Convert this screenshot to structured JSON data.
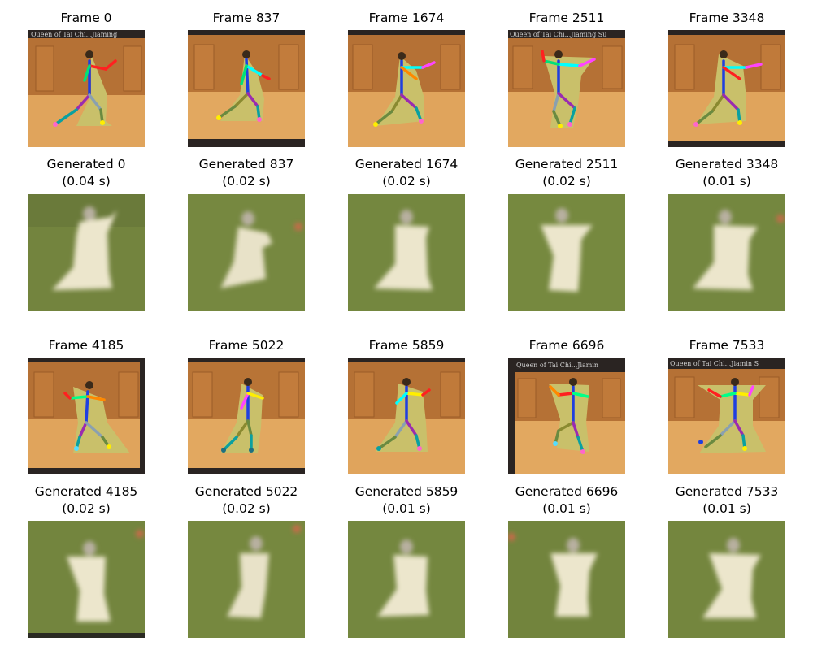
{
  "figure": {
    "rows": [
      {
        "frames": [
          {
            "label": "Frame 0",
            "source_band": "Queen of Tai Chi...Jiaming"
          },
          {
            "label": "Frame 837"
          },
          {
            "label": "Frame 1674"
          },
          {
            "label": "Frame 2511",
            "source_band": "Queen of Tai Chi...Jiaming Su"
          },
          {
            "label": "Frame 3348"
          }
        ],
        "generated": [
          {
            "label": "Generated 0",
            "time": "(0.04 s)"
          },
          {
            "label": "Generated 837",
            "time": "(0.02 s)"
          },
          {
            "label": "Generated 1674",
            "time": "(0.02 s)"
          },
          {
            "label": "Generated 2511",
            "time": "(0.02 s)"
          },
          {
            "label": "Generated 3348",
            "time": "(0.01 s)"
          }
        ]
      },
      {
        "frames": [
          {
            "label": "Frame 4185"
          },
          {
            "label": "Frame 5022"
          },
          {
            "label": "Frame 5859"
          },
          {
            "label": "Frame 6696",
            "source_band": "Queen of Tai Chi...Jiamin"
          },
          {
            "label": "Frame 7533",
            "source_band": "Queen of Tai Chi...Jiamin S"
          }
        ],
        "generated": [
          {
            "label": "Generated 4185",
            "time": "(0.02 s)"
          },
          {
            "label": "Generated 5022",
            "time": "(0.02 s)"
          },
          {
            "label": "Generated 5859",
            "time": "(0.01 s)"
          },
          {
            "label": "Generated 6696",
            "time": "(0.01 s)"
          },
          {
            "label": "Generated 7533",
            "time": "(0.01 s)"
          }
        ]
      }
    ]
  }
}
